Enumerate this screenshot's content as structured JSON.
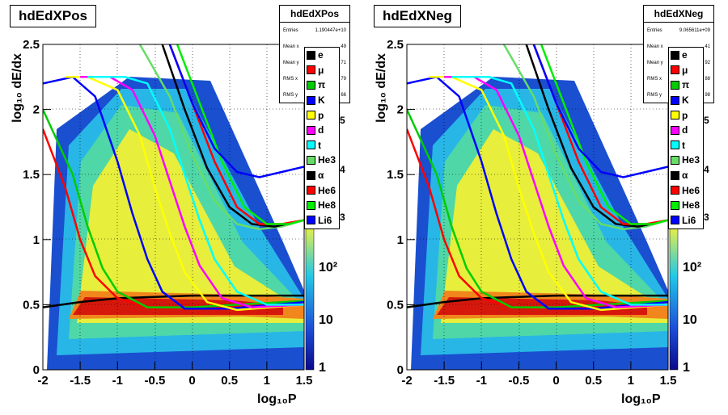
{
  "panels": [
    {
      "title": "hdEdXPos",
      "stats": {
        "name": "hdEdXPos",
        "entries_label": "Entries",
        "entries": "1.190447e+10",
        "mean_x_label": "Mean x",
        "mean_x": "49",
        "mean_y_label": "Mean y",
        "mean_y": "71",
        "rms_x_label": "RMS x",
        "rms_x": "79",
        "rms_y_label": "RMS y",
        "rms_y": "66"
      }
    },
    {
      "title": "hdEdXNeg",
      "stats": {
        "name": "hdEdXNeg",
        "entries_label": "Entries",
        "entries": "9.065611e+09",
        "mean_x_label": "Mean x",
        "mean_x": "41",
        "mean_y_label": "Mean y",
        "mean_y": "92",
        "rms_x_label": "RMS x",
        "rms_x": "88",
        "rms_y_label": "RMS y",
        "rms_y": "98"
      }
    }
  ],
  "legend": [
    {
      "label": "e",
      "color": "#000000"
    },
    {
      "label": "μ",
      "color": "#ff0000"
    },
    {
      "label": "π",
      "color": "#00cc00"
    },
    {
      "label": "K",
      "color": "#0000ff"
    },
    {
      "label": "p",
      "color": "#ffff00"
    },
    {
      "label": "d",
      "color": "#ff00ff"
    },
    {
      "label": "t",
      "color": "#00ffff"
    },
    {
      "label": "He3",
      "color": "#66dd66"
    },
    {
      "label": "α",
      "color": "#000000"
    },
    {
      "label": "He6",
      "color": "#ff0000"
    },
    {
      "label": "He8",
      "color": "#00ee00"
    },
    {
      "label": "Li6",
      "color": "#0000ff"
    }
  ],
  "colorbar": {
    "labels": [
      "1",
      "10",
      "10²"
    ],
    "partial_labels": [
      "5",
      "4",
      "3"
    ]
  },
  "chart_data": [
    {
      "type": "heatmap",
      "title": "hdEdXPos",
      "xlabel": "log₁₀P",
      "ylabel": "log₁₀ dE/dx",
      "xlim": [
        -2,
        1.5
      ],
      "ylim": [
        0,
        2.5
      ],
      "x_ticks": [
        "-2",
        "-1.5",
        "-1",
        "-0.5",
        "0",
        "0.5",
        "1",
        "1.5"
      ],
      "y_ticks": [
        "0",
        "0.5",
        "1",
        "1.5",
        "2",
        "2.5"
      ],
      "grid": true,
      "z_scale": "log",
      "series_names": [
        "e",
        "μ",
        "π",
        "K",
        "p",
        "d",
        "t",
        "He3",
        "α",
        "He6",
        "He8",
        "Li6"
      ],
      "bands": [
        {
          "name": "e",
          "points": [
            [
              -2,
              0.48
            ],
            [
              -1.5,
              0.52
            ],
            [
              -1,
              0.55
            ],
            [
              -0.5,
              0.56
            ],
            [
              0,
              0.57
            ],
            [
              1.5,
              0.57
            ]
          ]
        },
        {
          "name": "μ",
          "points": [
            [
              -2,
              1.85
            ],
            [
              -1.7,
              1.4
            ],
            [
              -1.5,
              1.0
            ],
            [
              -1.3,
              0.72
            ],
            [
              -1.0,
              0.55
            ],
            [
              -0.6,
              0.48
            ],
            [
              0,
              0.48
            ],
            [
              1.5,
              0.52
            ]
          ]
        },
        {
          "name": "π",
          "points": [
            [
              -2,
              2.0
            ],
            [
              -1.6,
              1.5
            ],
            [
              -1.4,
              1.1
            ],
            [
              -1.2,
              0.78
            ],
            [
              -1.0,
              0.6
            ],
            [
              -0.6,
              0.48
            ],
            [
              0,
              0.48
            ],
            [
              1.5,
              0.53
            ]
          ]
        },
        {
          "name": "K",
          "points": [
            [
              -2,
              2.2
            ],
            [
              -1.6,
              2.25
            ],
            [
              -1.3,
              2.1
            ],
            [
              -1.0,
              1.6
            ],
            [
              -0.8,
              1.2
            ],
            [
              -0.6,
              0.85
            ],
            [
              -0.4,
              0.6
            ],
            [
              -0.1,
              0.47
            ],
            [
              0.5,
              0.47
            ],
            [
              1.5,
              0.52
            ]
          ]
        },
        {
          "name": "p",
          "points": [
            [
              -1.7,
              2.25
            ],
            [
              -1.4,
              2.25
            ],
            [
              -1.0,
              2.15
            ],
            [
              -0.7,
              1.8
            ],
            [
              -0.5,
              1.4
            ],
            [
              -0.3,
              1.05
            ],
            [
              -0.1,
              0.75
            ],
            [
              0.2,
              0.52
            ],
            [
              0.6,
              0.46
            ],
            [
              1.5,
              0.5
            ]
          ]
        },
        {
          "name": "d",
          "points": [
            [
              -1.5,
              2.25
            ],
            [
              -1.1,
              2.25
            ],
            [
              -0.8,
              2.15
            ],
            [
              -0.5,
              1.8
            ],
            [
              -0.3,
              1.45
            ],
            [
              -0.1,
              1.1
            ],
            [
              0.1,
              0.8
            ],
            [
              0.4,
              0.55
            ],
            [
              0.8,
              0.48
            ],
            [
              1.5,
              0.5
            ]
          ]
        },
        {
          "name": "t",
          "points": [
            [
              -1.4,
              2.25
            ],
            [
              -0.9,
              2.25
            ],
            [
              -0.6,
              2.2
            ],
            [
              -0.3,
              1.85
            ],
            [
              -0.1,
              1.5
            ],
            [
              0.1,
              1.15
            ],
            [
              0.3,
              0.85
            ],
            [
              0.6,
              0.6
            ],
            [
              1.0,
              0.5
            ],
            [
              1.5,
              0.5
            ]
          ]
        },
        {
          "name": "He3",
          "points": [
            [
              -0.7,
              2.5
            ],
            [
              -0.3,
              2.1
            ],
            [
              0,
              1.65
            ],
            [
              0.3,
              1.3
            ],
            [
              0.6,
              1.12
            ],
            [
              0.9,
              1.08
            ],
            [
              1.2,
              1.1
            ],
            [
              1.5,
              1.15
            ]
          ]
        },
        {
          "name": "α",
          "points": [
            [
              -0.4,
              2.5
            ],
            [
              -0.1,
              2.0
            ],
            [
              0.2,
              1.55
            ],
            [
              0.5,
              1.25
            ],
            [
              0.8,
              1.12
            ],
            [
              1.1,
              1.1
            ],
            [
              1.5,
              1.15
            ]
          ]
        },
        {
          "name": "He6",
          "points": [
            [
              -0.3,
              2.5
            ],
            [
              0,
              2.05
            ],
            [
              0.3,
              1.6
            ],
            [
              0.6,
              1.25
            ],
            [
              0.9,
              1.12
            ],
            [
              1.2,
              1.12
            ],
            [
              1.5,
              1.15
            ]
          ]
        },
        {
          "name": "He8",
          "points": [
            [
              -0.2,
              2.5
            ],
            [
              0.1,
              2.05
            ],
            [
              0.4,
              1.6
            ],
            [
              0.7,
              1.25
            ],
            [
              1.0,
              1.12
            ],
            [
              1.3,
              1.12
            ],
            [
              1.5,
              1.15
            ]
          ]
        },
        {
          "name": "Li6",
          "points": [
            [
              -0.3,
              2.5
            ],
            [
              0,
              2.05
            ],
            [
              0.3,
              1.7
            ],
            [
              0.6,
              1.52
            ],
            [
              0.9,
              1.48
            ],
            [
              1.2,
              1.52
            ],
            [
              1.5,
              1.56
            ]
          ]
        }
      ]
    },
    {
      "type": "heatmap",
      "title": "hdEdXNeg",
      "xlabel": "log₁₀P",
      "ylabel": "log₁₀ dE/dx",
      "xlim": [
        -2,
        1.5
      ],
      "ylim": [
        0,
        2.5
      ],
      "x_ticks": [
        "-2",
        "-1.5",
        "-1",
        "-0.5",
        "0",
        "0.5",
        "1",
        "1.5"
      ],
      "y_ticks": [
        "0",
        "0.5",
        "1",
        "1.5",
        "2",
        "2.5"
      ],
      "grid": true,
      "z_scale": "log",
      "series_names": [
        "e",
        "μ",
        "π",
        "K",
        "p",
        "d",
        "t",
        "He3",
        "α",
        "He6",
        "He8",
        "Li6"
      ]
    }
  ]
}
